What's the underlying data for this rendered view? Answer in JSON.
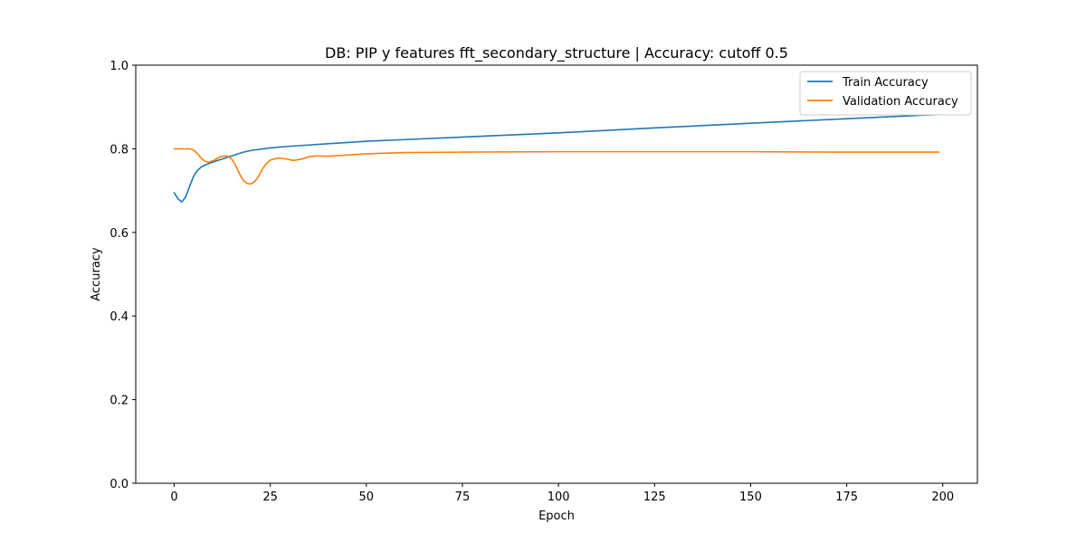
{
  "chart_data": {
    "type": "line",
    "title": "DB: PIP y features fft_secondary_structure | Accuracy: cutoff 0.5",
    "xlabel": "Epoch",
    "ylabel": "Accuracy",
    "xlim": [
      -10,
      209
    ],
    "ylim": [
      0.0,
      1.0
    ],
    "x_ticks": [
      0,
      25,
      50,
      75,
      100,
      125,
      150,
      175,
      200
    ],
    "y_ticks": [
      0.0,
      0.2,
      0.4,
      0.6,
      0.8,
      1.0
    ],
    "x_tick_labels": [
      "0",
      "25",
      "50",
      "75",
      "100",
      "125",
      "150",
      "175",
      "200"
    ],
    "y_tick_labels": [
      "0.0",
      "0.2",
      "0.4",
      "0.6",
      "0.8",
      "1.0"
    ],
    "grid": false,
    "legend_position": "top-right",
    "series": [
      {
        "name": "Train Accuracy",
        "color": "#1f77b4",
        "x": [
          0,
          1,
          2,
          3,
          4,
          5,
          6,
          7,
          8,
          10,
          12,
          14,
          16,
          18,
          20,
          25,
          30,
          35,
          40,
          50,
          60,
          75,
          90,
          100,
          125,
          150,
          175,
          199
        ],
        "values": [
          0.695,
          0.68,
          0.673,
          0.685,
          0.71,
          0.733,
          0.748,
          0.756,
          0.761,
          0.768,
          0.774,
          0.78,
          0.786,
          0.792,
          0.796,
          0.802,
          0.806,
          0.809,
          0.812,
          0.818,
          0.822,
          0.828,
          0.834,
          0.838,
          0.85,
          0.861,
          0.872,
          0.882
        ]
      },
      {
        "name": "Validation Accuracy",
        "color": "#ff7f0e",
        "x": [
          0,
          2,
          4,
          5,
          6,
          7,
          8,
          9,
          10,
          11,
          12,
          13,
          14,
          15,
          16,
          17,
          18,
          19,
          20,
          21,
          22,
          23,
          24,
          25,
          27,
          29,
          31,
          33,
          35,
          37,
          40,
          45,
          50,
          60,
          75,
          100,
          125,
          150,
          175,
          199
        ],
        "values": [
          0.8,
          0.8,
          0.8,
          0.797,
          0.789,
          0.778,
          0.77,
          0.768,
          0.771,
          0.776,
          0.781,
          0.783,
          0.782,
          0.775,
          0.76,
          0.74,
          0.724,
          0.717,
          0.716,
          0.722,
          0.735,
          0.752,
          0.765,
          0.773,
          0.778,
          0.776,
          0.772,
          0.775,
          0.781,
          0.783,
          0.782,
          0.785,
          0.788,
          0.791,
          0.792,
          0.793,
          0.793,
          0.793,
          0.792,
          0.792
        ]
      }
    ]
  }
}
